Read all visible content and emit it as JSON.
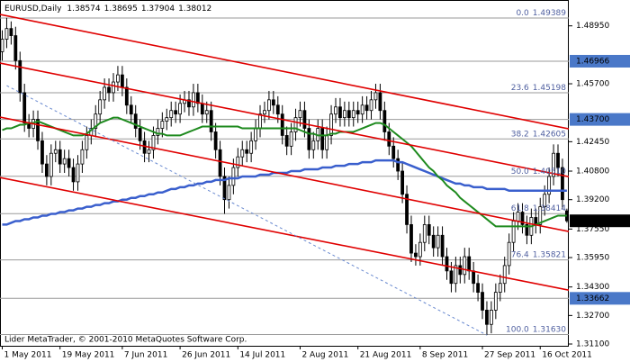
{
  "chart_data": {
    "type": "candlestick",
    "title": "EURUSD,Daily",
    "credit": "Lider MetaTrader, © 2001-2010 MetaQuotes Software Corp.",
    "categories": [
      "1 May 2011",
      null,
      null,
      null,
      null,
      null,
      null,
      null,
      null,
      null,
      null,
      null,
      null,
      "19 May 2011",
      null,
      null,
      null,
      null,
      null,
      null,
      null,
      null,
      null,
      null,
      null,
      null,
      null,
      "7 Jun 2011",
      null,
      null,
      null,
      null,
      null,
      null,
      null,
      null,
      null,
      null,
      null,
      null,
      "26 Jun 2011",
      null,
      null,
      null,
      null,
      null,
      null,
      null,
      null,
      null,
      null,
      null,
      null,
      "14 Jul 2011",
      null,
      null,
      null,
      null,
      null,
      null,
      null,
      null,
      null,
      null,
      null,
      null,
      null,
      "2 Aug 2011",
      null,
      null,
      null,
      null,
      null,
      null,
      null,
      null,
      null,
      null,
      null,
      null,
      "21 Aug 2011",
      null,
      null,
      null,
      null,
      null,
      null,
      null,
      null,
      null,
      null,
      null,
      null,
      null,
      "8 Sep 2011",
      null,
      null,
      null,
      null,
      null,
      null,
      null,
      null,
      null,
      null,
      null,
      null,
      null,
      "27 Sep 2011",
      null,
      null,
      null,
      null,
      null,
      null,
      null,
      null,
      null,
      null,
      null,
      null,
      "16 Oct 2011",
      null,
      null,
      null,
      null,
      null,
      null
    ],
    "open": [
      1.475,
      1.482,
      1.488,
      1.484,
      1.47,
      1.452,
      1.435,
      1.432,
      1.437,
      1.425,
      1.412,
      1.405,
      1.418,
      1.42,
      1.412,
      1.415,
      1.41,
      1.402,
      1.412,
      1.42,
      1.428,
      1.432,
      1.44,
      1.448,
      1.455,
      1.452,
      1.458,
      1.462,
      1.455,
      1.445,
      1.44,
      1.432,
      1.425,
      1.418,
      1.42,
      1.428,
      1.432,
      1.436,
      1.438,
      1.442,
      1.44,
      1.446,
      1.448,
      1.444,
      1.452,
      1.446,
      1.44,
      1.442,
      1.43,
      1.42,
      1.405,
      1.392,
      1.4,
      1.41,
      1.416,
      1.42,
      1.418,
      1.425,
      1.432,
      1.44,
      1.442,
      1.448,
      1.445,
      1.44,
      1.428,
      1.422,
      1.43,
      1.438,
      1.442,
      1.432,
      1.42,
      1.425,
      1.432,
      1.42,
      1.428,
      1.44,
      1.444,
      1.438,
      1.442,
      1.438,
      1.442,
      1.44,
      1.445,
      1.442,
      1.448,
      1.452,
      1.442,
      1.43,
      1.422,
      1.415,
      1.408,
      1.395,
      1.378,
      1.362,
      1.36,
      1.368,
      1.378,
      1.372,
      1.365,
      1.372,
      1.36,
      1.352,
      1.345,
      1.355,
      1.35,
      1.36,
      1.352,
      1.345,
      1.34,
      1.33,
      1.322,
      1.33,
      1.34,
      1.345,
      1.355,
      1.368,
      1.38,
      1.385,
      1.378,
      1.372,
      1.382,
      1.378,
      1.388,
      1.395,
      1.405,
      1.418,
      1.41,
      1.38574
    ],
    "high": [
      1.487,
      1.494,
      1.492,
      1.489,
      1.475,
      1.457,
      1.44,
      1.442,
      1.442,
      1.43,
      1.417,
      1.423,
      1.425,
      1.425,
      1.42,
      1.42,
      1.415,
      1.417,
      1.425,
      1.433,
      1.437,
      1.445,
      1.453,
      1.46,
      1.46,
      1.463,
      1.467,
      1.467,
      1.46,
      1.45,
      1.445,
      1.437,
      1.43,
      1.425,
      1.433,
      1.437,
      1.441,
      1.443,
      1.447,
      1.447,
      1.451,
      1.453,
      1.453,
      1.457,
      1.457,
      1.451,
      1.447,
      1.447,
      1.435,
      1.425,
      1.41,
      1.405,
      1.415,
      1.421,
      1.425,
      1.425,
      1.43,
      1.437,
      1.445,
      1.447,
      1.453,
      1.453,
      1.45,
      1.445,
      1.433,
      1.435,
      1.443,
      1.447,
      1.447,
      1.437,
      1.43,
      1.437,
      1.437,
      1.433,
      1.445,
      1.449,
      1.449,
      1.447,
      1.447,
      1.447,
      1.447,
      1.45,
      1.45,
      1.453,
      1.457,
      1.457,
      1.447,
      1.435,
      1.427,
      1.42,
      1.413,
      1.4,
      1.383,
      1.367,
      1.373,
      1.383,
      1.383,
      1.377,
      1.377,
      1.377,
      1.365,
      1.357,
      1.36,
      1.36,
      1.365,
      1.365,
      1.357,
      1.35,
      1.345,
      1.335,
      1.335,
      1.345,
      1.35,
      1.36,
      1.373,
      1.385,
      1.39,
      1.39,
      1.383,
      1.387,
      1.387,
      1.393,
      1.4,
      1.41,
      1.423,
      1.423,
      1.415,
      1.38695
    ],
    "low": [
      1.47,
      1.477,
      1.479,
      1.465,
      1.447,
      1.43,
      1.427,
      1.427,
      1.42,
      1.407,
      1.4,
      1.4,
      1.413,
      1.407,
      1.407,
      1.405,
      1.397,
      1.397,
      1.407,
      1.415,
      1.423,
      1.427,
      1.435,
      1.443,
      1.447,
      1.447,
      1.453,
      1.45,
      1.44,
      1.435,
      1.427,
      1.42,
      1.413,
      1.413,
      1.415,
      1.423,
      1.427,
      1.431,
      1.433,
      1.435,
      1.435,
      1.441,
      1.439,
      1.439,
      1.441,
      1.435,
      1.435,
      1.425,
      1.415,
      1.4,
      1.384,
      1.387,
      1.395,
      1.405,
      1.411,
      1.413,
      1.413,
      1.42,
      1.427,
      1.435,
      1.437,
      1.44,
      1.435,
      1.423,
      1.417,
      1.417,
      1.425,
      1.433,
      1.427,
      1.415,
      1.415,
      1.42,
      1.415,
      1.415,
      1.423,
      1.435,
      1.433,
      1.433,
      1.433,
      1.433,
      1.435,
      1.435,
      1.437,
      1.437,
      1.443,
      1.437,
      1.425,
      1.417,
      1.41,
      1.403,
      1.39,
      1.373,
      1.357,
      1.355,
      1.355,
      1.363,
      1.367,
      1.36,
      1.36,
      1.355,
      1.347,
      1.34,
      1.34,
      1.345,
      1.345,
      1.347,
      1.34,
      1.335,
      1.325,
      1.316,
      1.317,
      1.325,
      1.335,
      1.34,
      1.35,
      1.363,
      1.375,
      1.373,
      1.367,
      1.367,
      1.373,
      1.373,
      1.383,
      1.39,
      1.4,
      1.405,
      1.387,
      1.37904
    ],
    "close": [
      1.482,
      1.488,
      1.484,
      1.47,
      1.452,
      1.435,
      1.432,
      1.437,
      1.425,
      1.412,
      1.405,
      1.418,
      1.42,
      1.412,
      1.415,
      1.41,
      1.402,
      1.412,
      1.42,
      1.428,
      1.432,
      1.44,
      1.448,
      1.455,
      1.452,
      1.458,
      1.462,
      1.455,
      1.445,
      1.44,
      1.432,
      1.425,
      1.418,
      1.42,
      1.428,
      1.432,
      1.436,
      1.438,
      1.442,
      1.44,
      1.446,
      1.448,
      1.444,
      1.452,
      1.446,
      1.44,
      1.442,
      1.43,
      1.42,
      1.405,
      1.392,
      1.4,
      1.41,
      1.416,
      1.42,
      1.418,
      1.425,
      1.432,
      1.44,
      1.442,
      1.448,
      1.445,
      1.44,
      1.428,
      1.422,
      1.43,
      1.438,
      1.442,
      1.432,
      1.42,
      1.425,
      1.432,
      1.42,
      1.428,
      1.44,
      1.444,
      1.438,
      1.442,
      1.438,
      1.442,
      1.44,
      1.445,
      1.442,
      1.448,
      1.452,
      1.442,
      1.43,
      1.422,
      1.415,
      1.408,
      1.395,
      1.378,
      1.362,
      1.36,
      1.368,
      1.378,
      1.372,
      1.365,
      1.372,
      1.36,
      1.352,
      1.345,
      1.355,
      1.35,
      1.36,
      1.352,
      1.345,
      1.34,
      1.33,
      1.322,
      1.33,
      1.34,
      1.345,
      1.355,
      1.368,
      1.38,
      1.385,
      1.378,
      1.372,
      1.382,
      1.378,
      1.388,
      1.395,
      1.405,
      1.418,
      1.41,
      1.392,
      1.38012
    ],
    "series": [
      {
        "color": "#3a5fcd",
        "values": [
          1.378,
          1.378,
          1.379,
          1.38,
          1.38,
          1.381,
          1.381,
          1.382,
          1.382,
          1.383,
          1.383,
          1.384,
          1.384,
          1.385,
          1.385,
          1.386,
          1.386,
          1.387,
          1.387,
          1.388,
          1.388,
          1.389,
          1.389,
          1.39,
          1.39,
          1.391,
          1.391,
          1.392,
          1.392,
          1.393,
          1.393,
          1.394,
          1.394,
          1.395,
          1.395,
          1.396,
          1.396,
          1.397,
          1.398,
          1.398,
          1.399,
          1.399,
          1.4,
          1.4,
          1.401,
          1.401,
          1.402,
          1.402,
          1.403,
          1.403,
          1.403,
          1.404,
          1.404,
          1.404,
          1.405,
          1.405,
          1.405,
          1.405,
          1.406,
          1.406,
          1.406,
          1.407,
          1.407,
          1.407,
          1.407,
          1.408,
          1.408,
          1.408,
          1.409,
          1.409,
          1.409,
          1.409,
          1.41,
          1.41,
          1.41,
          1.411,
          1.411,
          1.411,
          1.412,
          1.412,
          1.412,
          1.413,
          1.413,
          1.413,
          1.414,
          1.414,
          1.414,
          1.414,
          1.414,
          1.413,
          1.413,
          1.412,
          1.411,
          1.41,
          1.409,
          1.408,
          1.407,
          1.406,
          1.405,
          1.404,
          1.403,
          1.402,
          1.401,
          1.401,
          1.4,
          1.4,
          1.399,
          1.399,
          1.399,
          1.398,
          1.398,
          1.398,
          1.398,
          1.398,
          1.397,
          1.397,
          1.397,
          1.397,
          1.397,
          1.397,
          1.397,
          1.397,
          1.397,
          1.397,
          1.397,
          1.397,
          1.397,
          1.397
        ]
      },
      {
        "color": "#1e8a1e",
        "values": [
          1.431,
          1.432,
          1.432,
          1.433,
          1.434,
          1.434,
          1.435,
          1.435,
          1.436,
          1.435,
          1.434,
          1.433,
          1.432,
          1.431,
          1.43,
          1.429,
          1.428,
          1.428,
          1.428,
          1.429,
          1.431,
          1.433,
          1.435,
          1.436,
          1.437,
          1.438,
          1.438,
          1.437,
          1.436,
          1.435,
          1.434,
          1.433,
          1.432,
          1.431,
          1.43,
          1.429,
          1.429,
          1.428,
          1.428,
          1.428,
          1.428,
          1.429,
          1.43,
          1.431,
          1.432,
          1.433,
          1.433,
          1.433,
          1.433,
          1.433,
          1.433,
          1.433,
          1.433,
          1.433,
          1.432,
          1.432,
          1.432,
          1.432,
          1.432,
          1.432,
          1.432,
          1.432,
          1.432,
          1.432,
          1.432,
          1.432,
          1.432,
          1.431,
          1.43,
          1.429,
          1.429,
          1.428,
          1.428,
          1.428,
          1.429,
          1.429,
          1.43,
          1.43,
          1.43,
          1.43,
          1.431,
          1.432,
          1.433,
          1.434,
          1.435,
          1.435,
          1.434,
          1.432,
          1.43,
          1.428,
          1.426,
          1.424,
          1.422,
          1.419,
          1.416,
          1.413,
          1.41,
          1.408,
          1.405,
          1.403,
          1.4,
          1.398,
          1.396,
          1.393,
          1.391,
          1.389,
          1.387,
          1.385,
          1.383,
          1.381,
          1.379,
          1.377,
          1.377,
          1.377,
          1.377,
          1.377,
          1.377,
          1.377,
          1.377,
          1.377,
          1.378,
          1.379,
          1.38,
          1.381,
          1.382,
          1.383,
          1.383,
          1.383
        ]
      }
    ],
    "trendlines": [
      {
        "color": "#e00000",
        "values": [
          1.4959,
          1.4317
        ]
      },
      {
        "color": "#e00000",
        "values": [
          1.4686,
          1.4049
        ]
      },
      {
        "color": "#e00000",
        "values": [
          1.4383,
          1.3741
        ]
      },
      {
        "color": "#e00000",
        "values": [
          1.4044,
          1.3412
        ]
      }
    ],
    "dashed_line": {
      "color": "#6a8ad0",
      "x": [
        1,
        109
      ],
      "values": [
        1.456,
        1.316
      ]
    },
    "fib_levels": [
      {
        "ratio": "0.0",
        "price": {
          "value": 1.49389,
          "label": "1.49389"
        }
      },
      {
        "ratio": "23.6",
        "price": {
          "value": 1.45198,
          "label": "1.45198"
        }
      },
      {
        "ratio": "38.2",
        "price": {
          "value": 1.42605,
          "label": "1.42605"
        }
      },
      {
        "ratio": "50.0",
        "price": {
          "value": 1.4051,
          "label": "1.40510"
        }
      },
      {
        "ratio": "61.8",
        "price": {
          "value": 1.38414,
          "label": "1.38414"
        }
      },
      {
        "ratio": "76.4",
        "price": {
          "value": 1.35821,
          "label": "1.35821"
        }
      },
      {
        "ratio": "100.0",
        "price": {
          "value": 1.3163,
          "label": "1.31630"
        }
      }
    ],
    "price_levels": [
      {
        "value": 1.46966,
        "label": "1.46966"
      },
      {
        "value": 1.437,
        "label": "1.43700"
      },
      {
        "value": 1.33662,
        "label": "1.33662"
      }
    ],
    "ylim": [
      1.31,
      1.504
    ],
    "yticks": [
      {
        "value": 1.4895,
        "label": "1.48950"
      },
      {
        "value": 1.457,
        "label": "1.45700"
      },
      {
        "value": 1.4245,
        "label": "1.42450"
      },
      {
        "value": 1.408,
        "label": "1.40800"
      },
      {
        "value": 1.392,
        "label": "1.39200"
      },
      {
        "value": 1.3755,
        "label": "1.37550"
      },
      {
        "value": 1.3595,
        "label": "1.35950"
      },
      {
        "value": 1.343,
        "label": "1.34300"
      },
      {
        "value": 1.327,
        "label": "1.32700"
      },
      {
        "value": 1.311,
        "label": "1.31100"
      }
    ]
  }
}
